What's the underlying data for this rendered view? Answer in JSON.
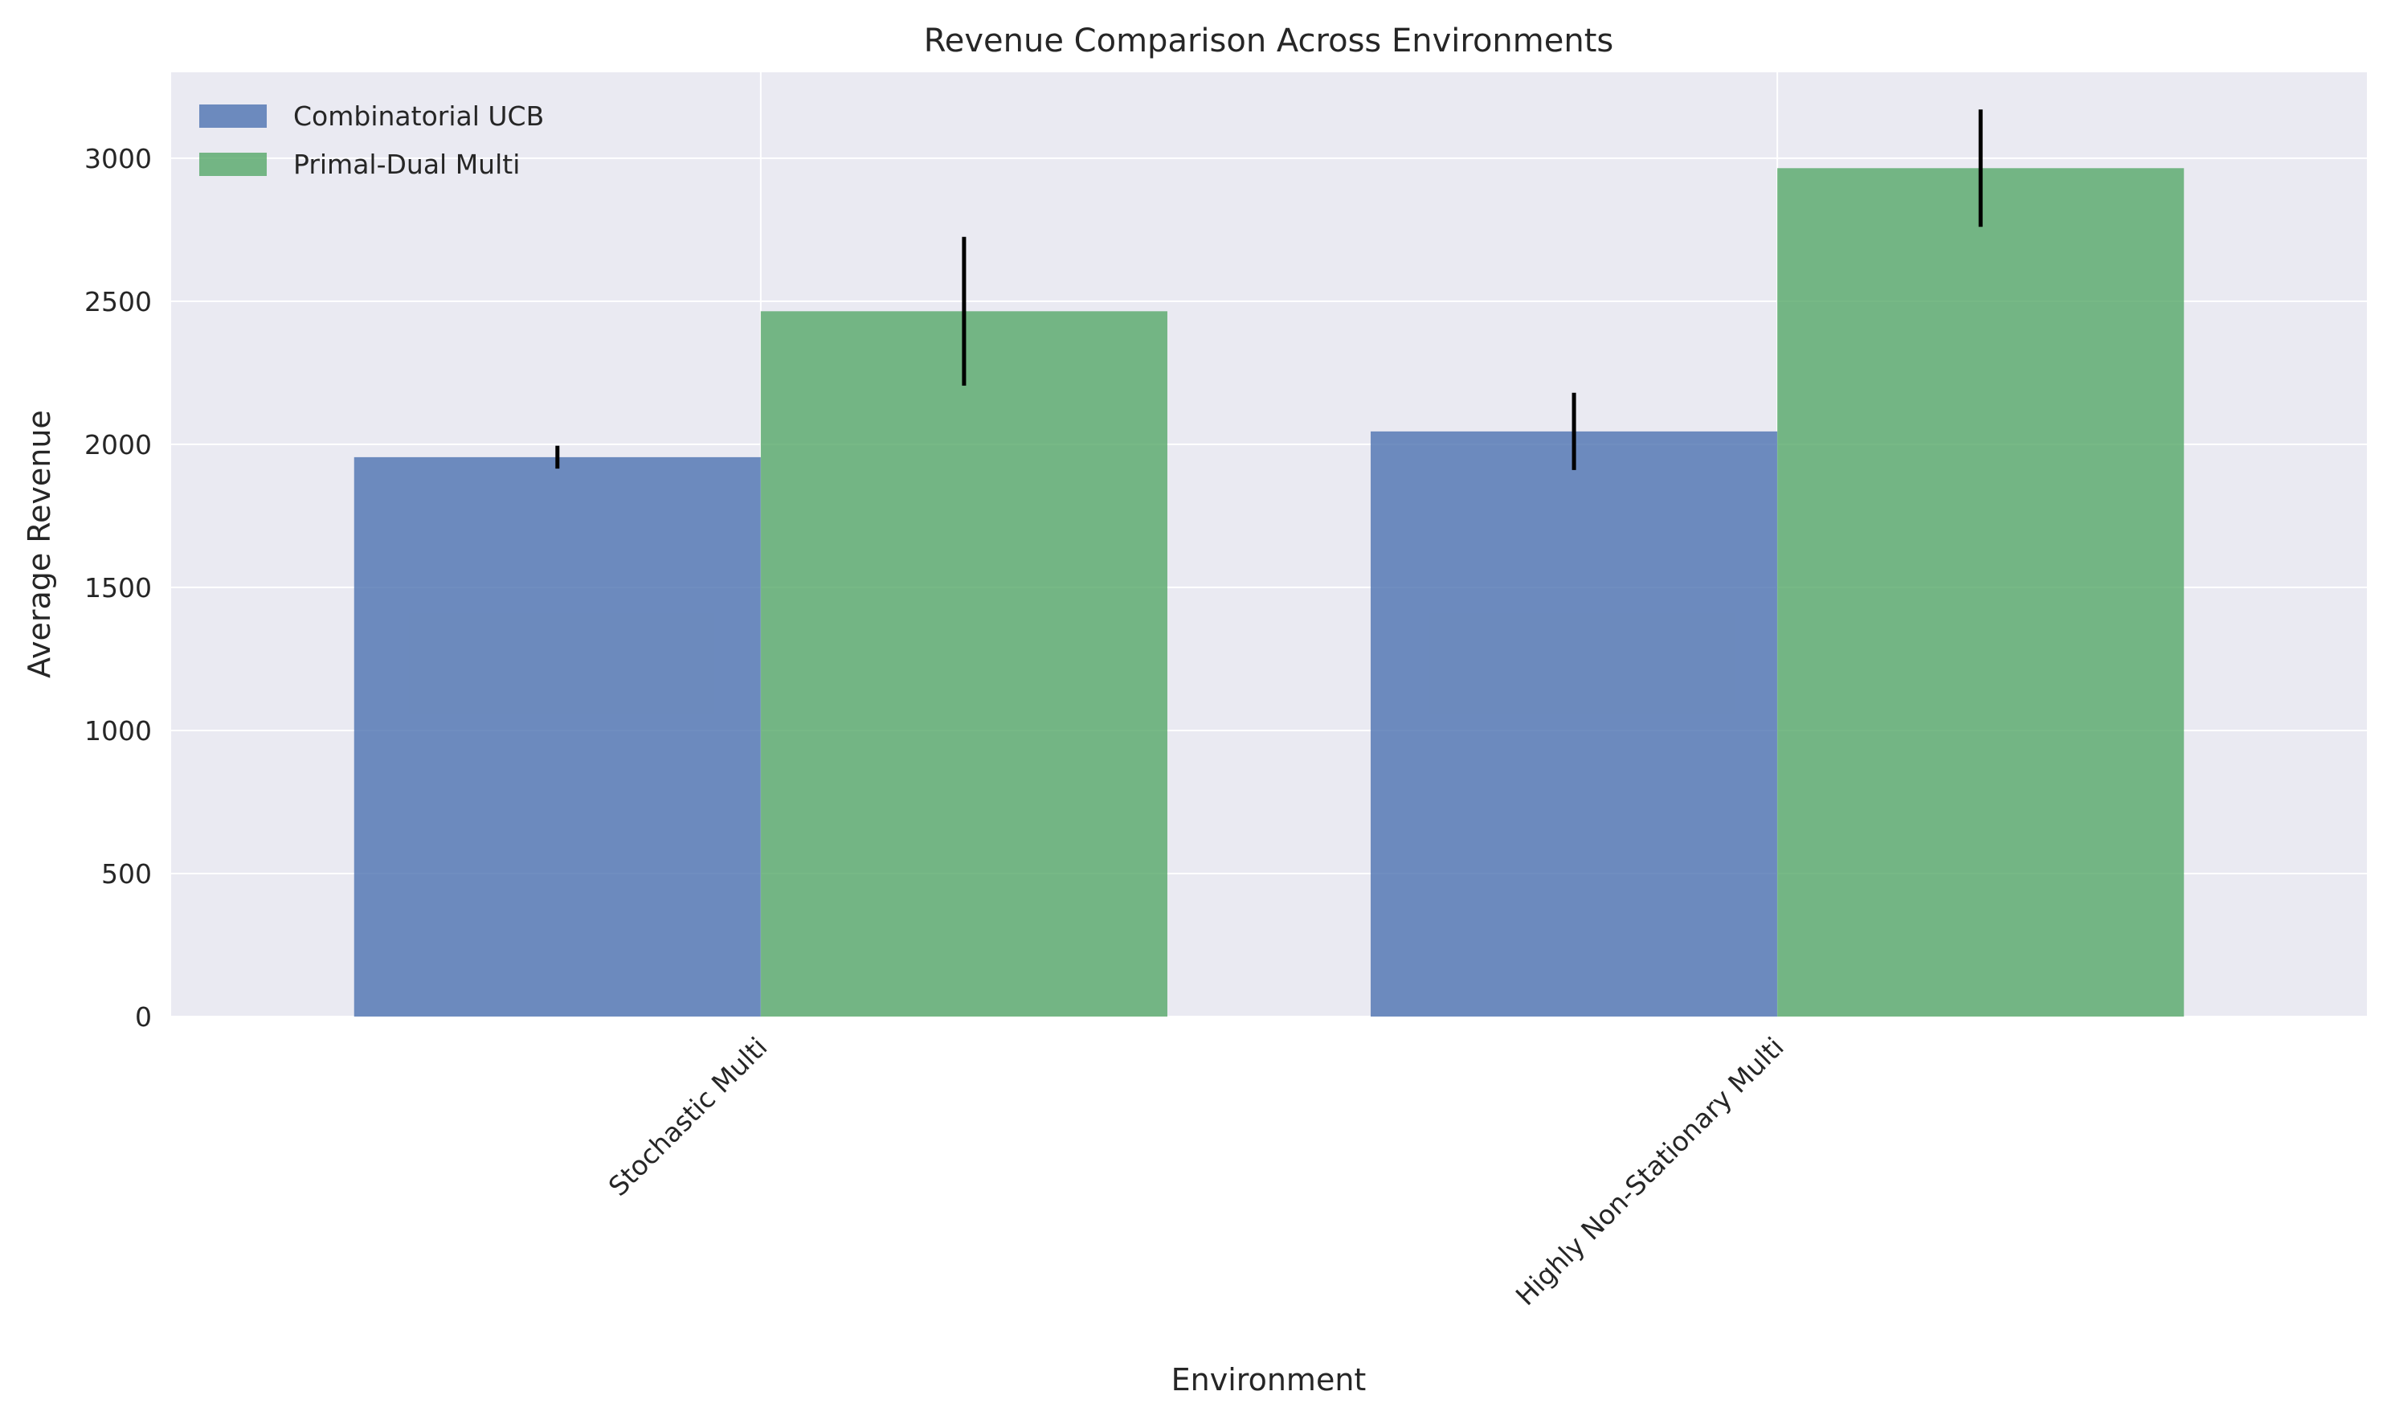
{
  "chart_data": {
    "type": "bar",
    "title": "Revenue Comparison Across Environments",
    "xlabel": "Environment",
    "ylabel": "Average Revenue",
    "categories": [
      "Stochastic Multi",
      "Highly Non-Stationary Multi"
    ],
    "series": [
      {
        "name": "Combinatorial UCB",
        "color": "#4c72b0",
        "values": [
          1955,
          2045
        ],
        "error": [
          40,
          135
        ]
      },
      {
        "name": "Primal-Dual Multi",
        "color": "#55a868",
        "values": [
          2465,
          2965
        ],
        "error": [
          260,
          205
        ]
      }
    ],
    "ylim": [
      0,
      3300
    ],
    "yticks": [
      "0",
      "500",
      "1000",
      "1500",
      "2000",
      "2500",
      "3000"
    ],
    "grid": true,
    "legend_position": "upper-left",
    "background": "#eaeaf2"
  }
}
